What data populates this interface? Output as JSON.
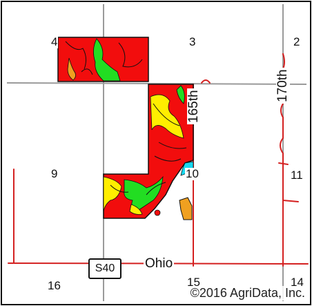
{
  "map": {
    "sections": [
      "4",
      "3",
      "2",
      "9",
      "10",
      "11",
      "16",
      "15",
      "14"
    ],
    "roads": {
      "north_south_1": "165th",
      "north_south_2": "170th",
      "east_west": "Ohio"
    },
    "highway_shield": "S40",
    "copyright": "©2016 AgriData, Inc."
  },
  "colors": {
    "soil_red": "#f20d0d",
    "soil_green": "#22dd22",
    "soil_yellow": "#ffee00",
    "soil_orange": "#f0a020",
    "soil_cyan": "#18d8f0",
    "road_red": "#d42020",
    "section_line": "#9a9a9a",
    "border": "#111111"
  }
}
